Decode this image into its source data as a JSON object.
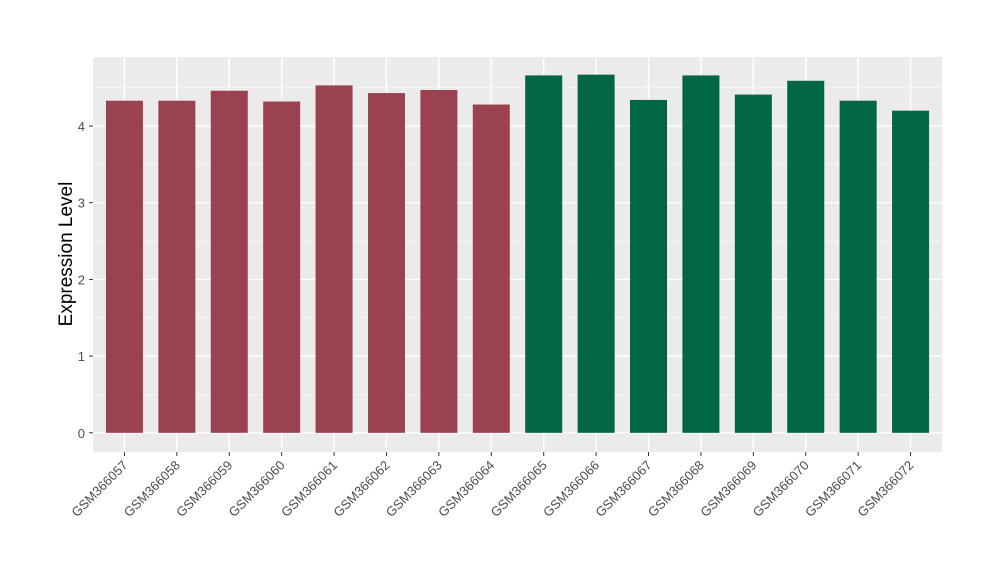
{
  "chart_data": {
    "type": "bar",
    "title": "",
    "xlabel": "",
    "ylabel": "Expression Level",
    "ylim": [
      -0.25,
      4.9
    ],
    "yticks": [
      0,
      1,
      2,
      3,
      4
    ],
    "grid": true,
    "categories": [
      "GSM366057",
      "GSM366058",
      "GSM366059",
      "GSM366060",
      "GSM366061",
      "GSM366062",
      "GSM366063",
      "GSM366064",
      "GSM366065",
      "GSM366066",
      "GSM366067",
      "GSM366068",
      "GSM366069",
      "GSM366070",
      "GSM366071",
      "GSM366072"
    ],
    "values": [
      4.33,
      4.33,
      4.46,
      4.32,
      4.53,
      4.43,
      4.47,
      4.28,
      4.66,
      4.67,
      4.34,
      4.66,
      4.41,
      4.59,
      4.33,
      4.2
    ],
    "groups": [
      0,
      0,
      0,
      0,
      0,
      0,
      0,
      0,
      1,
      1,
      1,
      1,
      1,
      1,
      1,
      1
    ],
    "colors": [
      "#9b4250",
      "#006644"
    ]
  }
}
